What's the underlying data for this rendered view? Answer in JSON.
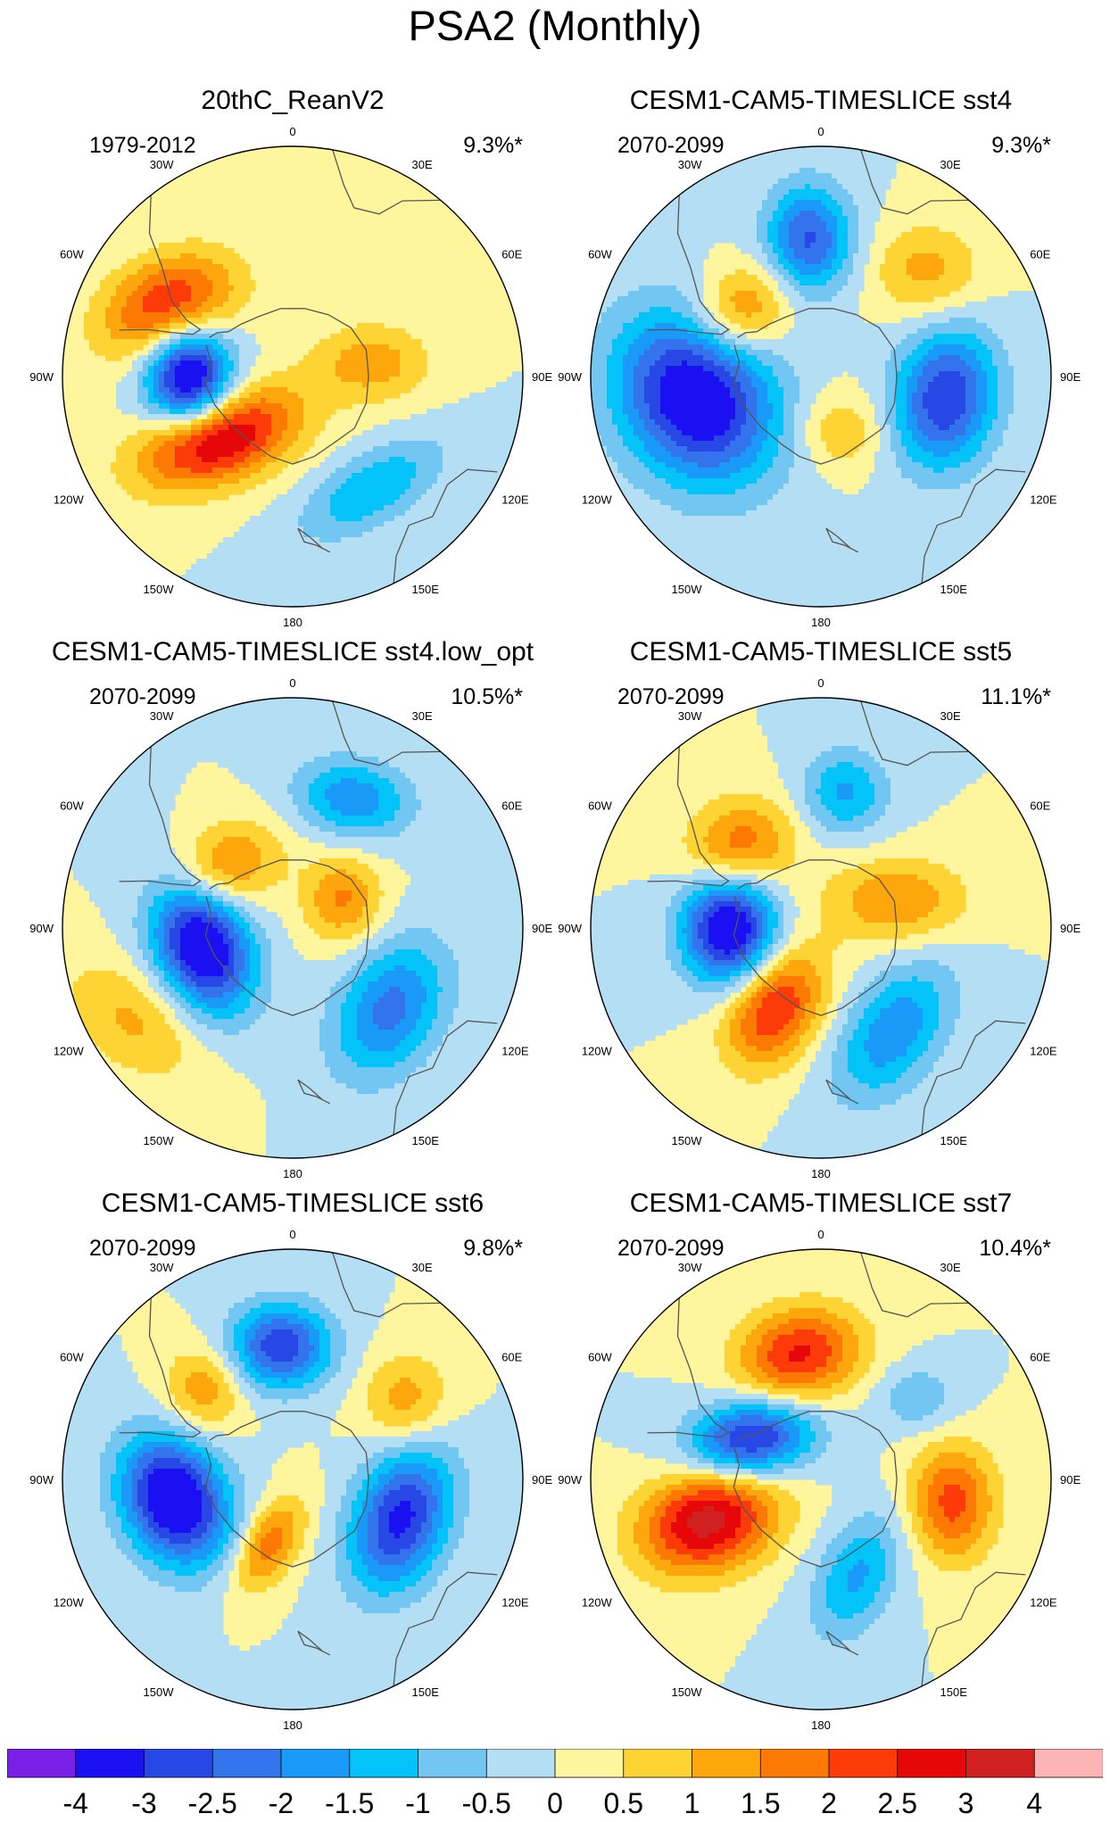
{
  "title": "PSA2 (Monthly)",
  "lon_labels": [
    "0",
    "30E",
    "60E",
    "90E",
    "120E",
    "150E",
    "180",
    "150W",
    "120W",
    "90W",
    "60W",
    "30W"
  ],
  "panels": [
    {
      "title": "20thC_ReanV2",
      "period": "1979-2012",
      "variance": "9.3%*",
      "blobs": [
        {
          "lon": -60,
          "r": 0.62,
          "sx": 0.36,
          "sy": 0.24,
          "rot": -25,
          "amp": 2.6
        },
        {
          "lon": -90,
          "r": 0.45,
          "sx": 0.22,
          "sy": 0.26,
          "rot": 0,
          "amp": -4.0
        },
        {
          "lon": -130,
          "r": 0.42,
          "sx": 0.42,
          "sy": 0.22,
          "rot": -20,
          "amp": 3.3
        },
        {
          "lon": 145,
          "r": 0.6,
          "sx": 0.4,
          "sy": 0.18,
          "rot": -30,
          "amp": -1.5
        },
        {
          "lon": 80,
          "r": 0.35,
          "sx": 0.3,
          "sy": 0.2,
          "rot": 0,
          "amp": 1.3
        }
      ]
    },
    {
      "title": "CESM1-CAM5-TIMESLICE sst4",
      "period": "2070-2099",
      "variance": "9.3%*",
      "blobs": [
        {
          "lon": -100,
          "r": 0.55,
          "sx": 0.38,
          "sy": 0.46,
          "rot": -35,
          "amp": -3.8
        },
        {
          "lon": 100,
          "r": 0.55,
          "sx": 0.26,
          "sy": 0.36,
          "rot": 10,
          "amp": -3.0
        },
        {
          "lon": -5,
          "r": 0.6,
          "sx": 0.22,
          "sy": 0.28,
          "rot": 0,
          "amp": -2.6
        },
        {
          "lon": -50,
          "r": 0.45,
          "sx": 0.26,
          "sy": 0.22,
          "rot": -30,
          "amp": 1.8
        },
        {
          "lon": 45,
          "r": 0.65,
          "sx": 0.28,
          "sy": 0.24,
          "rot": 0,
          "amp": 1.2
        },
        {
          "lon": 160,
          "r": 0.25,
          "sx": 0.22,
          "sy": 0.2,
          "rot": 0,
          "amp": 1.0
        }
      ]
    },
    {
      "title": "CESM1-CAM5-TIMESLICE sst4.low_opt",
      "period": "2070-2099",
      "variance": "10.5%*",
      "blobs": [
        {
          "lon": -100,
          "r": 0.4,
          "sx": 0.24,
          "sy": 0.36,
          "rot": -20,
          "amp": -4.0
        },
        {
          "lon": 130,
          "r": 0.55,
          "sx": 0.26,
          "sy": 0.38,
          "rot": 30,
          "amp": -2.2
        },
        {
          "lon": 25,
          "r": 0.62,
          "sx": 0.3,
          "sy": 0.2,
          "rot": 10,
          "amp": -1.9
        },
        {
          "lon": -50,
          "r": 0.4,
          "sx": 0.3,
          "sy": 0.22,
          "rot": -25,
          "amp": 1.8
        },
        {
          "lon": 60,
          "r": 0.25,
          "sx": 0.2,
          "sy": 0.22,
          "rot": 0,
          "amp": 1.6
        },
        {
          "lon": -120,
          "r": 0.8,
          "sx": 0.4,
          "sy": 0.26,
          "rot": 35,
          "amp": 1.1
        }
      ]
    },
    {
      "title": "CESM1-CAM5-TIMESLICE sst5",
      "period": "2070-2099",
      "variance": "11.1%*",
      "blobs": [
        {
          "lon": -90,
          "r": 0.4,
          "sx": 0.24,
          "sy": 0.28,
          "rot": 0,
          "amp": -3.9
        },
        {
          "lon": -150,
          "r": 0.4,
          "sx": 0.22,
          "sy": 0.32,
          "rot": 30,
          "amp": 2.6
        },
        {
          "lon": 145,
          "r": 0.55,
          "sx": 0.24,
          "sy": 0.4,
          "rot": 35,
          "amp": -1.9
        },
        {
          "lon": 10,
          "r": 0.6,
          "sx": 0.22,
          "sy": 0.22,
          "rot": 0,
          "amp": -1.6
        },
        {
          "lon": -45,
          "r": 0.5,
          "sx": 0.28,
          "sy": 0.24,
          "rot": -20,
          "amp": 1.9
        },
        {
          "lon": 70,
          "r": 0.35,
          "sx": 0.36,
          "sy": 0.22,
          "rot": 0,
          "amp": 1.5
        }
      ]
    },
    {
      "title": "CESM1-CAM5-TIMESLICE sst6",
      "period": "2070-2099",
      "variance": "9.8%*",
      "blobs": [
        {
          "lon": -100,
          "r": 0.52,
          "sx": 0.26,
          "sy": 0.34,
          "rot": -25,
          "amp": -4.0
        },
        {
          "lon": 110,
          "r": 0.5,
          "sx": 0.24,
          "sy": 0.38,
          "rot": 20,
          "amp": -3.2
        },
        {
          "lon": -5,
          "r": 0.58,
          "sx": 0.26,
          "sy": 0.22,
          "rot": 0,
          "amp": -2.9
        },
        {
          "lon": -160,
          "r": 0.3,
          "sx": 0.14,
          "sy": 0.26,
          "rot": 30,
          "amp": 1.9
        },
        {
          "lon": -45,
          "r": 0.55,
          "sx": 0.2,
          "sy": 0.22,
          "rot": -20,
          "amp": 1.4
        },
        {
          "lon": 55,
          "r": 0.6,
          "sx": 0.22,
          "sy": 0.24,
          "rot": 10,
          "amp": 1.3
        }
      ]
    },
    {
      "title": "CESM1-CAM5-TIMESLICE sst7",
      "period": "2070-2099",
      "variance": "10.4%*",
      "blobs": [
        {
          "lon": -110,
          "r": 0.52,
          "sx": 0.36,
          "sy": 0.26,
          "rot": -20,
          "amp": 3.3
        },
        {
          "lon": -60,
          "r": 0.35,
          "sx": 0.32,
          "sy": 0.2,
          "rot": -10,
          "amp": -3.3
        },
        {
          "lon": -10,
          "r": 0.55,
          "sx": 0.32,
          "sy": 0.24,
          "rot": -15,
          "amp": 2.6
        },
        {
          "lon": 100,
          "r": 0.58,
          "sx": 0.22,
          "sy": 0.3,
          "rot": 0,
          "amp": 2.2
        },
        {
          "lon": 160,
          "r": 0.45,
          "sx": 0.2,
          "sy": 0.34,
          "rot": 25,
          "amp": -1.6
        },
        {
          "lon": 50,
          "r": 0.55,
          "sx": 0.2,
          "sy": 0.16,
          "rot": 0,
          "amp": -1.0
        }
      ]
    }
  ],
  "colorbar": {
    "labels": [
      "-4",
      "-3",
      "-2.5",
      "-2",
      "-1.5",
      "-1",
      "-0.5",
      "0",
      "0.5",
      "1",
      "1.5",
      "2",
      "2.5",
      "3",
      "4"
    ],
    "colors": [
      "#7a1fe8",
      "#1a10f2",
      "#2848e6",
      "#3373ec",
      "#1a9af8",
      "#03c3f8",
      "#72c6f2",
      "#b4def4",
      "#fff59c",
      "#fed334",
      "#fda70c",
      "#fc7a04",
      "#fd3b08",
      "#e60808",
      "#d02020",
      "#fcb4b4"
    ],
    "thresholds": [
      -4,
      -3,
      -2.5,
      -2,
      -1.5,
      -1,
      -0.5,
      0,
      0.5,
      1,
      1.5,
      2,
      2.5,
      3,
      4
    ]
  }
}
